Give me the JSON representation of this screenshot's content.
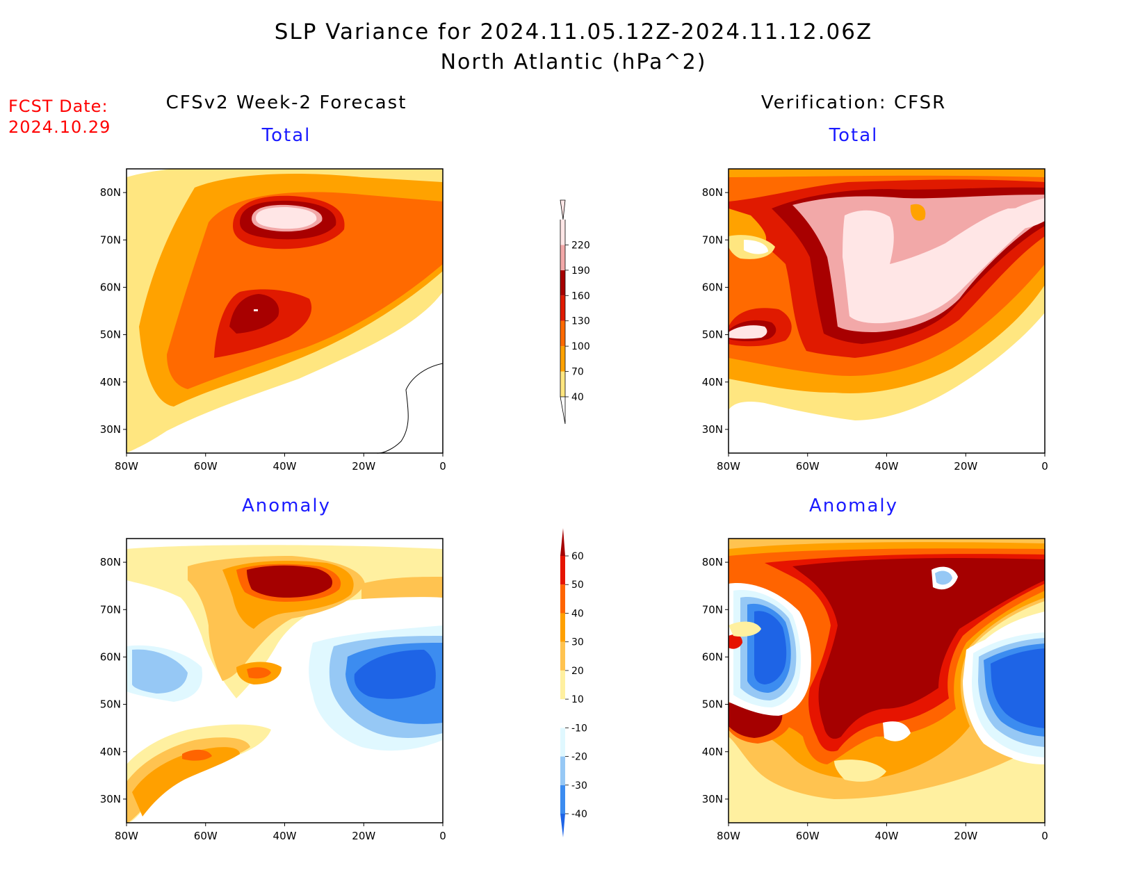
{
  "title": {
    "line1": "SLP Variance for 2024.11.05.12Z-2024.11.12.06Z",
    "line2": "North Atlantic (hPa^2)"
  },
  "forecast_date": {
    "label": "FCST Date:",
    "value": "2024.10.29"
  },
  "columns": {
    "left": "CFSv2 Week-2 Forecast",
    "right": "Verification: CFSR"
  },
  "panel_titles": {
    "total": "Total",
    "anomaly": "Anomaly"
  },
  "axes": {
    "lon_ticks": [
      "80W",
      "60W",
      "40W",
      "20W",
      "0"
    ],
    "lat_ticks": [
      "80N",
      "70N",
      "60N",
      "50N",
      "40N",
      "30N"
    ],
    "lon_range": [
      -80,
      0
    ],
    "lat_range": [
      25,
      85
    ]
  },
  "colorbars": {
    "total": {
      "levels": [
        "40",
        "70",
        "100",
        "130",
        "160",
        "190",
        "220"
      ],
      "colors": [
        "#ffe680",
        "#ffa200",
        "#ff6a00",
        "#e01a00",
        "#a80000",
        "#f2a8a8",
        "#ffe6e6"
      ]
    },
    "anomaly": {
      "levels": [
        "-40",
        "-30",
        "-20",
        "-10",
        "10",
        "20",
        "30",
        "40",
        "50",
        "60"
      ],
      "colors": [
        "#1e64e6",
        "#3c8cf0",
        "#96c8f5",
        "#e0f8ff",
        "#ffffff",
        "#fff0a0",
        "#ffc350",
        "#ffa000",
        "#ff6400",
        "#e61400",
        "#a50000"
      ]
    }
  },
  "chart_data": [
    {
      "type": "heatmap",
      "title": "Total",
      "subtitle": "CFSv2 Week-2 Forecast",
      "xlabel": "",
      "ylabel": "",
      "xlim": [
        -80,
        0
      ],
      "ylim": [
        25,
        85
      ],
      "units": "hPa^2",
      "features": [
        {
          "lon": -40,
          "lat": 75,
          "max_value": 220
        },
        {
          "lon": -47,
          "lat": 53,
          "max_value": 190
        }
      ]
    },
    {
      "type": "heatmap",
      "title": "Total",
      "subtitle": "Verification: CFSR",
      "xlabel": "",
      "ylabel": "",
      "xlim": [
        -80,
        0
      ],
      "ylim": [
        25,
        85
      ],
      "units": "hPa^2",
      "features": [
        {
          "lon": -40,
          "lat": 58,
          "max_value": 220
        },
        {
          "lon": -75,
          "lat": 48,
          "max_value": 220
        },
        {
          "lon": -5,
          "lat": 72,
          "max_value": 220
        }
      ]
    },
    {
      "type": "heatmap",
      "title": "Anomaly",
      "subtitle": "CFSv2 Week-2 Forecast",
      "xlabel": "",
      "ylabel": "",
      "xlim": [
        -80,
        0
      ],
      "ylim": [
        25,
        85
      ],
      "units": "hPa^2",
      "features": [
        {
          "lon": -38,
          "lat": 75,
          "max_value": 60
        },
        {
          "lon": -10,
          "lat": 55,
          "min_value": -40
        },
        {
          "lon": -65,
          "lat": 40,
          "max_value": 50
        }
      ]
    },
    {
      "type": "heatmap",
      "title": "Anomaly",
      "subtitle": "Verification: CFSR",
      "xlabel": "",
      "ylabel": "",
      "xlim": [
        -80,
        0
      ],
      "ylim": [
        25,
        85
      ],
      "units": "hPa^2",
      "features": [
        {
          "lon": -40,
          "lat": 60,
          "max_value": 60
        },
        {
          "lon": -65,
          "lat": 60,
          "min_value": -40
        },
        {
          "lon": -10,
          "lat": 55,
          "min_value": -40
        },
        {
          "lon": -75,
          "lat": 48,
          "max_value": 60
        }
      ]
    }
  ]
}
